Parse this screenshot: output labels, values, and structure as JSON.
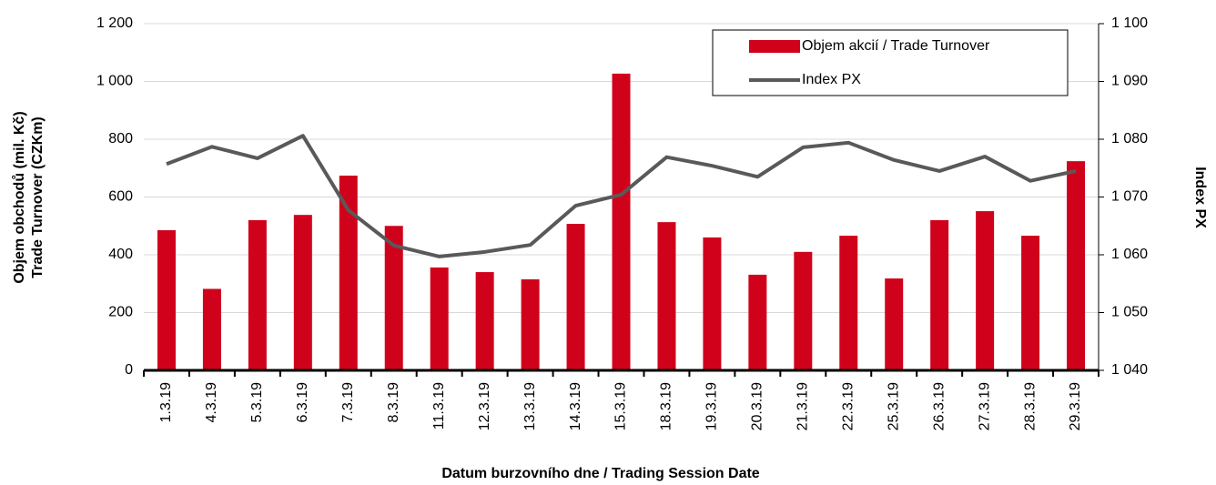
{
  "chart_data": {
    "type": "bar_line",
    "xlabel": "Datum burzovního dne / Trading Session Date",
    "ylabel": [
      "Objem obchodů (mil. Kč)",
      "Trade Turnover (CZKm)"
    ],
    "y2label": "Index PX",
    "categories": [
      "1.3.19",
      "4.3.19",
      "5.3.19",
      "6.3.19",
      "7.3.19",
      "8.3.19",
      "11.3.19",
      "12.3.19",
      "13.3.19",
      "14.3.19",
      "15.3.19",
      "18.3.19",
      "19.3.19",
      "20.3.19",
      "21.3.19",
      "22.3.19",
      "25.3.19",
      "26.3.19",
      "27.3.19",
      "28.3.19",
      "29.3.19"
    ],
    "series": [
      {
        "name": "Objem akcií / Trade Turnover",
        "color": "#d0021b",
        "kind": "bar",
        "values": [
          485,
          282,
          520,
          538,
          674,
          500,
          356,
          340,
          315,
          507,
          1027,
          513,
          460,
          331,
          410,
          466,
          318,
          520,
          551,
          466,
          724
        ]
      },
      {
        "name": "Index PX",
        "color": "#595959",
        "kind": "line",
        "axis": "y2",
        "values": [
          1075.7,
          1078.7,
          1076.7,
          1080.6,
          1067.7,
          1061.6,
          1059.7,
          1060.5,
          1061.7,
          1068.5,
          1070.4,
          1076.9,
          1075.4,
          1073.5,
          1078.6,
          1079.4,
          1076.4,
          1074.5,
          1077.0,
          1072.8,
          1074.5
        ]
      }
    ],
    "ylim": [
      0,
      1200
    ],
    "yticks": [
      0,
      200,
      400,
      600,
      800,
      {
        "value": 1000,
        "label": "1 000"
      },
      {
        "value": 1200,
        "label": "1 200"
      }
    ],
    "y2lim": [
      1040,
      1100
    ],
    "y2ticks": [
      {
        "value": 1040,
        "label": "1 040"
      },
      {
        "value": 1050,
        "label": "1 050"
      },
      {
        "value": 1060,
        "label": "1 060"
      },
      {
        "value": 1070,
        "label": "1 070"
      },
      {
        "value": 1080,
        "label": "1 080"
      },
      {
        "value": 1090,
        "label": "1 090"
      },
      {
        "value": 1100,
        "label": "1 100"
      }
    ],
    "grid": true,
    "legend": "upper right"
  }
}
